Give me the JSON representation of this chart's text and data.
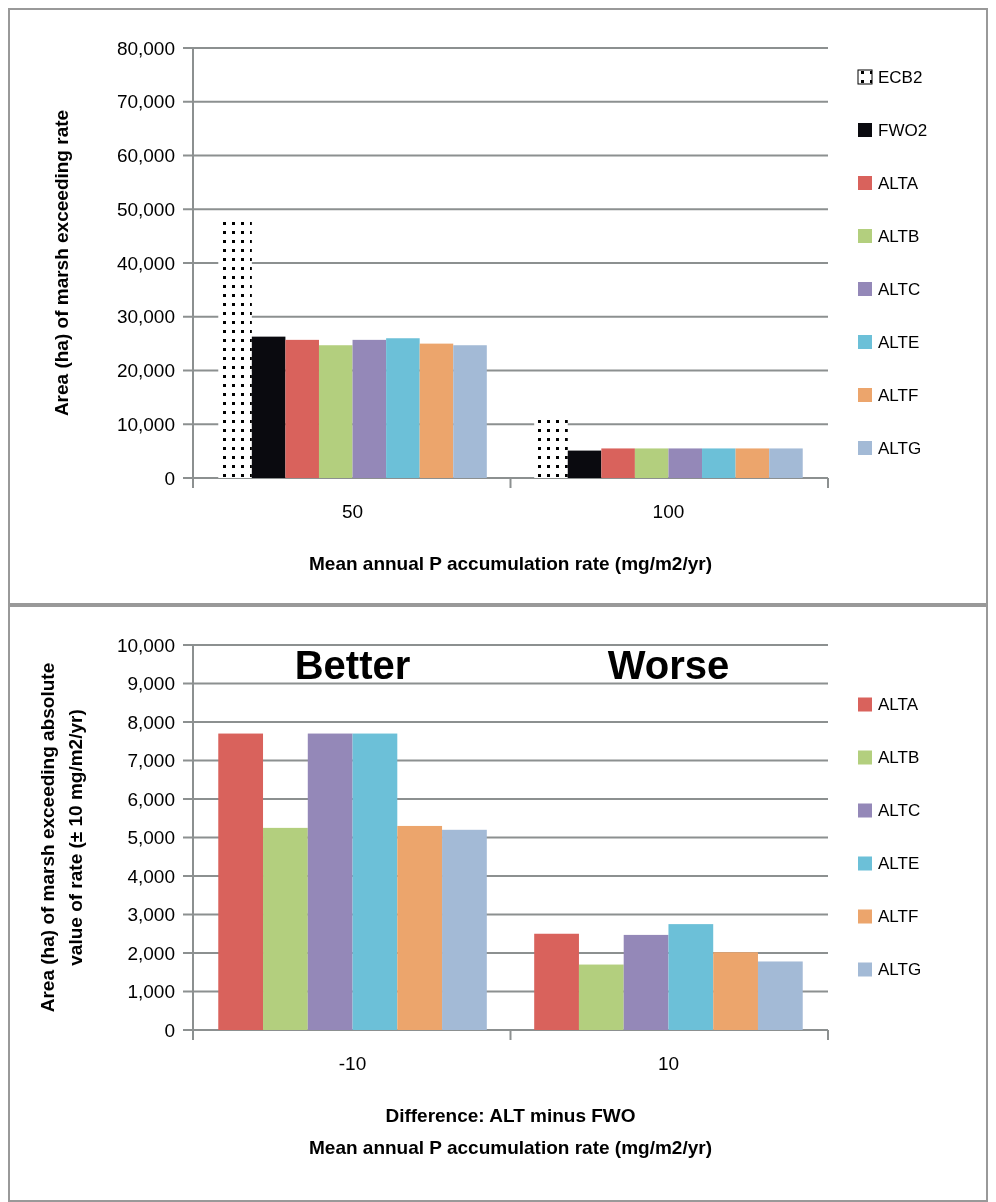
{
  "chart_data": [
    {
      "type": "bar",
      "categories": [
        "50",
        "100"
      ],
      "xlabel": "Mean annual P accumulation rate (mg/m2/yr)",
      "ylabel": "Area (ha) of marsh exceeding rate",
      "ylim": [
        0,
        80000
      ],
      "yticks": [
        {
          "value": 0,
          "label": "0"
        },
        {
          "value": 10000,
          "label": "10,000"
        },
        {
          "value": 20000,
          "label": "20,000"
        },
        {
          "value": 30000,
          "label": "30,000"
        },
        {
          "value": 40000,
          "label": "40,000"
        },
        {
          "value": 50000,
          "label": "50,000"
        },
        {
          "value": 60000,
          "label": "60,000"
        },
        {
          "value": 70000,
          "label": "70,000"
        },
        {
          "value": 80000,
          "label": "80,000"
        }
      ],
      "grid": "y",
      "legend": "right",
      "series": [
        {
          "name": "ECB2",
          "color": "#ffffff",
          "values": [
            48100,
            11400
          ]
        },
        {
          "name": "FWO2",
          "color": "#0a0a0f",
          "values": [
            26300,
            5100
          ]
        },
        {
          "name": "ALTA",
          "color": "#d9625c",
          "values": [
            25700,
            5500
          ]
        },
        {
          "name": "ALTB",
          "color": "#b3cf7e",
          "values": [
            24700,
            5500
          ]
        },
        {
          "name": "ALTC",
          "color": "#9488b8",
          "values": [
            25700,
            5500
          ]
        },
        {
          "name": "ALTE",
          "color": "#6cc0d8",
          "values": [
            26000,
            5500
          ]
        },
        {
          "name": "ALTF",
          "color": "#eca56c",
          "values": [
            25000,
            5500
          ]
        },
        {
          "name": "ALTG",
          "color": "#a3bad6",
          "values": [
            24700,
            5500
          ]
        }
      ]
    },
    {
      "type": "bar",
      "categories": [
        "-10",
        "10"
      ],
      "xlabel": "Difference: ALT minus FWO\nMean annual P accumulation rate (mg/m2/yr)",
      "ylabel": "Area (ha) of marsh exceeding absolute\nvalue of rate (± 10 mg/m2/yr)",
      "ylim": [
        0,
        10000
      ],
      "yticks": [
        {
          "value": 0,
          "label": "0"
        },
        {
          "value": 1000,
          "label": "1,000"
        },
        {
          "value": 2000,
          "label": "2,000"
        },
        {
          "value": 3000,
          "label": "3,000"
        },
        {
          "value": 4000,
          "label": "4,000"
        },
        {
          "value": 5000,
          "label": "5,000"
        },
        {
          "value": 6000,
          "label": "6,000"
        },
        {
          "value": 7000,
          "label": "7,000"
        },
        {
          "value": 8000,
          "label": "8,000"
        },
        {
          "value": 9000,
          "label": "9,000"
        },
        {
          "value": 10000,
          "label": "10,000"
        }
      ],
      "grid": "y",
      "legend": "right",
      "annotations": [
        "Better",
        "Worse"
      ],
      "series": [
        {
          "name": "ALTA",
          "color": "#d9625c",
          "values": [
            7700,
            2500
          ]
        },
        {
          "name": "ALTB",
          "color": "#b3cf7e",
          "values": [
            5250,
            1700
          ]
        },
        {
          "name": "ALTC",
          "color": "#9488b8",
          "values": [
            7700,
            2470
          ]
        },
        {
          "name": "ALTE",
          "color": "#6cc0d8",
          "values": [
            7700,
            2750
          ]
        },
        {
          "name": "ALTF",
          "color": "#eca56c",
          "values": [
            5300,
            2020
          ]
        },
        {
          "name": "ALTG",
          "color": "#a3bad6",
          "values": [
            5200,
            1780
          ]
        }
      ]
    }
  ]
}
